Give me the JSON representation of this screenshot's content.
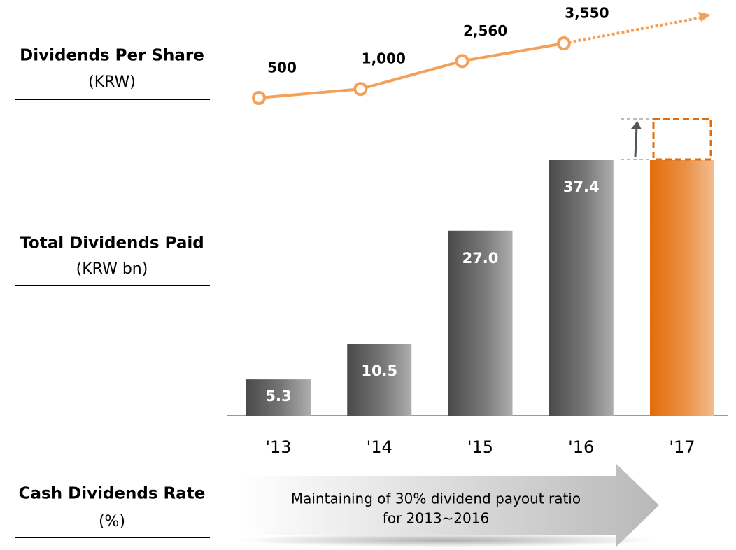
{
  "chart_data": [
    {
      "type": "line",
      "title": "Dividends Per Share",
      "unit": "(KRW)",
      "categories": [
        "'13",
        "'14",
        "'15",
        "'16"
      ],
      "values": [
        500,
        1000,
        2560,
        3550
      ],
      "value_labels": [
        "500",
        "1,000",
        "2,560",
        "3,550"
      ],
      "color": "#f4a058"
    },
    {
      "type": "bar",
      "title": "Total Dividends Paid",
      "unit": "(KRW bn)",
      "categories": [
        "'13",
        "'14",
        "'15",
        "'16",
        "'17"
      ],
      "values": [
        5.3,
        10.5,
        27.0,
        37.4,
        37.4
      ],
      "value_labels": [
        "5.3",
        "10.5",
        "27.0",
        "37.4",
        null
      ],
      "colors": [
        "#4a4a4a",
        "#4a4a4a",
        "#4a4a4a",
        "#4a4a4a",
        "#e36c09"
      ]
    }
  ],
  "rate_section": {
    "title": "Cash Dividends Rate",
    "unit": "(%)",
    "note": [
      "Maintaining of 30% dividend payout ratio",
      "for 2013~2016"
    ]
  }
}
